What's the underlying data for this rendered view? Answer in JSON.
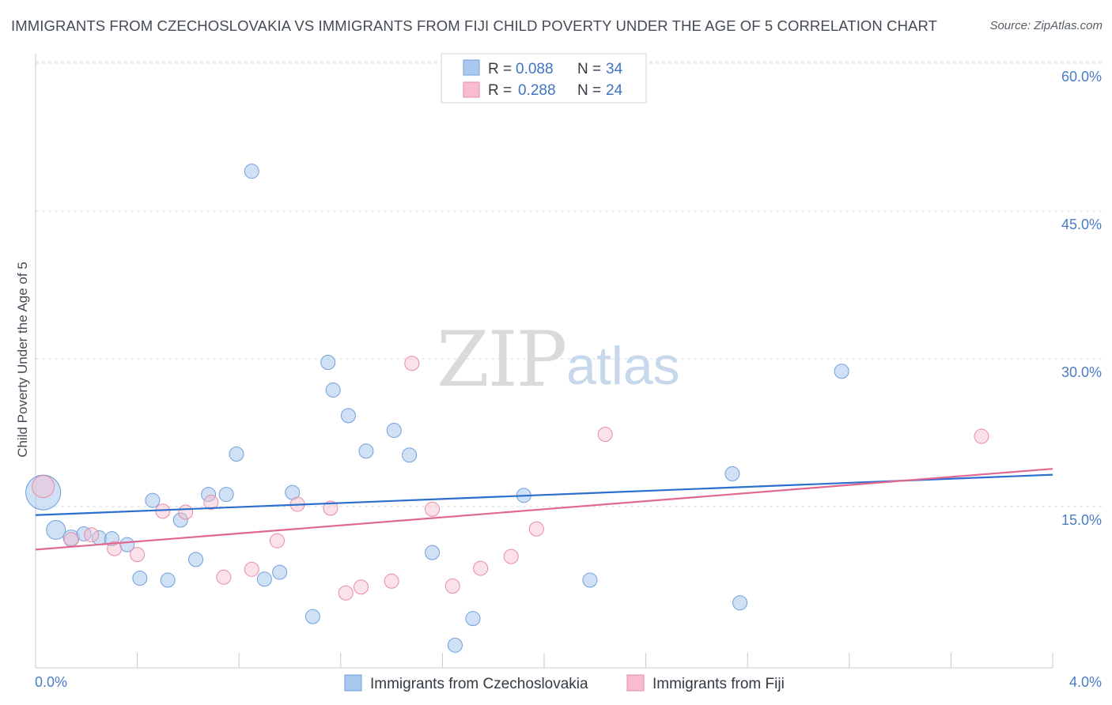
{
  "title": "IMMIGRANTS FROM CZECHOSLOVAKIA VS IMMIGRANTS FROM FIJI CHILD POVERTY UNDER THE AGE OF 5 CORRELATION CHART",
  "source": "Source: ZipAtlas.com",
  "watermark": {
    "left": "ZIP",
    "right": "atlas"
  },
  "legend": {
    "rows": [
      {
        "r_label": "R =",
        "r_value": "0.088",
        "n_label": "N =",
        "n_value": "34"
      },
      {
        "r_label": "R =",
        "r_value": "0.288",
        "n_label": "N =",
        "n_value": "24"
      }
    ]
  },
  "colors": {
    "series1_fill": "#a9c8ef",
    "series1_stroke": "#6f9fdc",
    "series1_line": "#2c6fcf",
    "series2_fill": "#f7bccd",
    "series2_stroke": "#e88aa8",
    "series2_line": "#e0688f",
    "tick_text": "#4a7cc7",
    "grid": "#d8dbe0"
  },
  "chart_data": {
    "type": "scatter",
    "title": "IMMIGRANTS FROM CZECHOSLOVAKIA VS IMMIGRANTS FROM FIJI CHILD POVERTY UNDER THE AGE OF 5 CORRELATION CHART",
    "xlabel": "",
    "ylabel": "Child Poverty Under the Age of 5",
    "xlim": [
      0,
      4.0
    ],
    "ylim": [
      0,
      60
    ],
    "x_tick_labels": [
      "0.0%",
      "4.0%"
    ],
    "y_ticks": [
      15,
      30,
      45,
      60
    ],
    "y_tick_labels": [
      "15.0%",
      "30.0%",
      "45.0%",
      "60.0%"
    ],
    "grid": true,
    "legend_position": "top-center",
    "series": [
      {
        "name": "Immigrants from Czechoslovakia",
        "r": 0.088,
        "n": 34,
        "trend": [
          [
            0.0,
            15.5
          ],
          [
            4.0,
            19.6
          ]
        ],
        "points": [
          [
            0.03,
            17.8,
            22
          ],
          [
            0.08,
            14.0,
            12
          ],
          [
            0.14,
            13.2,
            10
          ],
          [
            0.19,
            13.6,
            9
          ],
          [
            0.25,
            13.2,
            9
          ],
          [
            0.3,
            13.1,
            9
          ],
          [
            0.36,
            12.5,
            9
          ],
          [
            0.41,
            9.1,
            9
          ],
          [
            0.46,
            17.0,
            9
          ],
          [
            0.52,
            8.9,
            9
          ],
          [
            0.57,
            15.0,
            9
          ],
          [
            0.63,
            11.0,
            9
          ],
          [
            0.68,
            17.6,
            9
          ],
          [
            0.75,
            17.6,
            9
          ],
          [
            0.79,
            21.7,
            9
          ],
          [
            0.85,
            50.4,
            9
          ],
          [
            0.9,
            9.0,
            9
          ],
          [
            0.96,
            9.7,
            9
          ],
          [
            1.01,
            17.8,
            9
          ],
          [
            1.09,
            5.2,
            9
          ],
          [
            1.15,
            31.0,
            9
          ],
          [
            1.17,
            28.2,
            9
          ],
          [
            1.23,
            25.6,
            9
          ],
          [
            1.3,
            22.0,
            9
          ],
          [
            1.41,
            24.1,
            9
          ],
          [
            1.47,
            21.6,
            9
          ],
          [
            1.56,
            11.7,
            9
          ],
          [
            1.65,
            2.3,
            9
          ],
          [
            1.72,
            5.0,
            9
          ],
          [
            1.92,
            17.5,
            9
          ],
          [
            2.18,
            8.9,
            9
          ],
          [
            2.74,
            19.7,
            9
          ],
          [
            2.77,
            6.6,
            9
          ],
          [
            3.17,
            30.1,
            9
          ]
        ]
      },
      {
        "name": "Immigrants from Fiji",
        "r": 0.288,
        "n": 24,
        "trend": [
          [
            0.0,
            12.0
          ],
          [
            4.0,
            20.2
          ]
        ],
        "points": [
          [
            0.03,
            18.4,
            14
          ],
          [
            0.14,
            13.0,
            9
          ],
          [
            0.22,
            13.5,
            9
          ],
          [
            0.31,
            12.1,
            9
          ],
          [
            0.4,
            11.5,
            9
          ],
          [
            0.5,
            15.9,
            9
          ],
          [
            0.59,
            15.8,
            9
          ],
          [
            0.69,
            16.8,
            9
          ],
          [
            0.74,
            9.2,
            9
          ],
          [
            0.85,
            10.0,
            9
          ],
          [
            0.95,
            12.9,
            9
          ],
          [
            1.03,
            16.6,
            9
          ],
          [
            1.16,
            16.2,
            9
          ],
          [
            1.22,
            7.6,
            9
          ],
          [
            1.28,
            8.2,
            9
          ],
          [
            1.4,
            8.8,
            9
          ],
          [
            1.48,
            30.9,
            9
          ],
          [
            1.56,
            16.1,
            9
          ],
          [
            1.64,
            8.3,
            9
          ],
          [
            1.75,
            10.1,
            9
          ],
          [
            1.87,
            11.3,
            9
          ],
          [
            1.97,
            14.1,
            9
          ],
          [
            2.24,
            23.7,
            9
          ],
          [
            3.72,
            23.5,
            9
          ]
        ]
      }
    ]
  }
}
